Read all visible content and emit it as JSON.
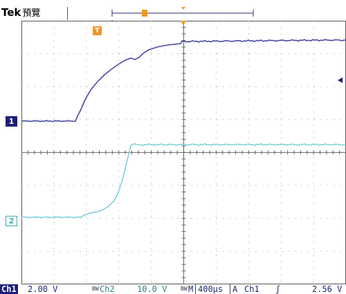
{
  "header": {
    "brand": "Tek",
    "mode": "預覽",
    "trigger_marker": "T"
  },
  "channels": {
    "ch1_marker": "1",
    "ch2_marker": "2"
  },
  "status": {
    "ch1_label": "Ch1",
    "ch1_scale": "2.00 V",
    "bw_mark_1": "BW",
    "ch2_label": "Ch2",
    "ch2_scale": "10.0 V",
    "bw_mark_2": "BW",
    "timebase_label": "M",
    "timebase": "400µs",
    "trigger_mode": "A",
    "trigger_source": "Ch1",
    "trigger_slope": "ʃ",
    "trigger_level": "2.56 V"
  },
  "colors": {
    "ch1": "#4a4aa0",
    "ch2": "#7fd0da",
    "trigger": "#f0962a",
    "grid": "#9a9a9a"
  }
}
